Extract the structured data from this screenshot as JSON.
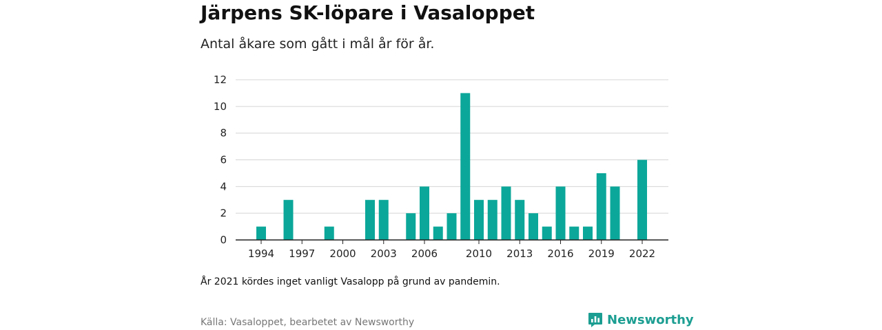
{
  "header": {
    "title": "Järpens SK-löpare i Vasaloppet",
    "subtitle": "Antal åkare som gått i mål år för år."
  },
  "chart_data": {
    "type": "bar",
    "title": "Järpens SK-löpare i Vasaloppet",
    "subtitle": "Antal åkare som gått i mål år för år.",
    "xlabel": "",
    "ylabel": "",
    "categories": [
      "1994",
      "1995",
      "1996",
      "1997",
      "1998",
      "1999",
      "2000",
      "2001",
      "2002",
      "2003",
      "2004",
      "2005",
      "2006",
      "2007",
      "2008",
      "2009",
      "2010",
      "2011",
      "2012",
      "2013",
      "2014",
      "2015",
      "2016",
      "2017",
      "2018",
      "2019",
      "2020",
      "2021",
      "2022"
    ],
    "values": [
      1,
      0,
      3,
      0,
      0,
      1,
      0,
      0,
      3,
      3,
      0,
      2,
      4,
      1,
      2,
      11,
      3,
      3,
      4,
      3,
      2,
      1,
      4,
      1,
      1,
      5,
      4,
      0,
      6
    ],
    "x_tick_labels": [
      "1994",
      "1997",
      "2000",
      "2003",
      "2006",
      "2010",
      "2013",
      "2016",
      "2019",
      "2022"
    ],
    "y_ticks": [
      0,
      2,
      4,
      6,
      8,
      10,
      12
    ],
    "ylim": [
      0,
      12
    ],
    "grid": "horizontal",
    "legend": "none",
    "bar_color": "#0ba79a",
    "grid_color": "#d4d4d4",
    "axis_color": "#222222"
  },
  "footer": {
    "note": "År 2021 kördes inget vanligt Vasalopp på grund av pandemin.",
    "source": "Källa: Vasaloppet, bearbetet av Newsworthy",
    "brand": "Newsworthy",
    "brand_icon": "newsworthy-logo-icon",
    "brand_color": "#1c9e92"
  }
}
